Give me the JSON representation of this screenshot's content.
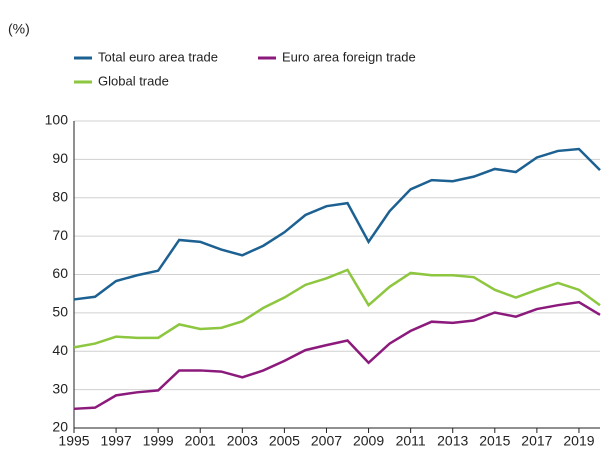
{
  "chart_data": {
    "type": "line",
    "y_label": "(%)",
    "x": [
      1995,
      1996,
      1997,
      1998,
      1999,
      2000,
      2001,
      2002,
      2003,
      2004,
      2005,
      2006,
      2007,
      2008,
      2009,
      2010,
      2011,
      2012,
      2013,
      2014,
      2015,
      2016,
      2017,
      2018,
      2019,
      2020
    ],
    "series": [
      {
        "name": "Total euro area trade",
        "color": "#1c6192",
        "values": [
          53.5,
          54.2,
          58.3,
          59.8,
          61,
          69,
          68.5,
          66.5,
          65,
          67.5,
          71,
          75.5,
          77.8,
          78.6,
          68.5,
          76.5,
          82.2,
          84.6,
          84.3,
          85.5,
          87.5,
          86.7,
          90.5,
          92.2,
          92.7,
          87.2
        ]
      },
      {
        "name": "Euro area foreign trade",
        "color": "#8b1a7c",
        "values": [
          25,
          25.3,
          28.5,
          29.3,
          29.8,
          35,
          35,
          34.7,
          33.2,
          35,
          37.5,
          40.3,
          41.6,
          42.8,
          37,
          42,
          45.3,
          47.7,
          47.4,
          48,
          50.1,
          49,
          51,
          52,
          52.8,
          49.5
        ]
      },
      {
        "name": "Global trade",
        "color": "#8dc63f",
        "values": [
          41,
          42,
          43.8,
          43.5,
          43.5,
          47,
          45.8,
          46.1,
          47.8,
          51.3,
          54,
          57.3,
          59,
          61.2,
          52,
          56.8,
          60.4,
          59.8,
          59.8,
          59.3,
          56,
          54,
          56,
          57.8,
          56,
          52
        ]
      }
    ],
    "xlim": [
      1995,
      2020
    ],
    "xticks": [
      1995,
      1997,
      1999,
      2001,
      2003,
      2005,
      2007,
      2009,
      2011,
      2013,
      2015,
      2017,
      2019
    ],
    "ylim": [
      20,
      100
    ],
    "yticks": [
      20,
      30,
      40,
      50,
      60,
      70,
      80,
      90,
      100
    ],
    "grid": true
  }
}
